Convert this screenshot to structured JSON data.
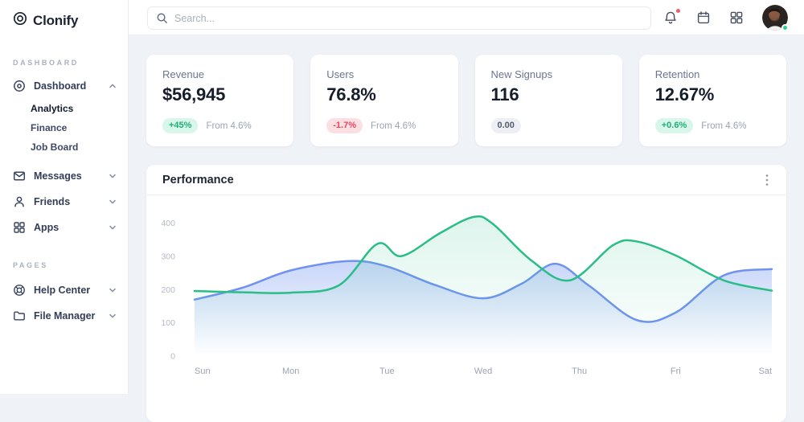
{
  "app": {
    "name": "Clonify"
  },
  "theme": {
    "green": "#2abd87",
    "blue": "#7093f0",
    "red": "#e8475c",
    "dark": "#161d2b",
    "muted": "#9aa3b4"
  },
  "topbar": {
    "search_placeholder": "Search...",
    "icons": [
      {
        "name": "bell-icon",
        "has_badge": true
      },
      {
        "name": "calendar-icon",
        "has_badge": false
      },
      {
        "name": "apps-grid-icon",
        "has_badge": false
      }
    ],
    "avatar": {
      "status": "online"
    }
  },
  "sidebar": {
    "section1_label": "DASHBOARD",
    "section2_label": "PAGES",
    "dashboard": {
      "label": "Dashboard",
      "expanded": true,
      "children": [
        {
          "label": "Analytics",
          "active": true
        },
        {
          "label": "Finance",
          "active": false
        },
        {
          "label": "Job Board",
          "active": false
        }
      ]
    },
    "items": [
      {
        "label": "Messages",
        "icon": "envelope-icon"
      },
      {
        "label": "Friends",
        "icon": "person-icon"
      },
      {
        "label": "Apps",
        "icon": "grid-icon"
      }
    ],
    "pages_items": [
      {
        "label": "Help Center",
        "icon": "life-buoy-icon"
      },
      {
        "label": "File Manager",
        "icon": "folder-icon"
      }
    ]
  },
  "stats": [
    {
      "title": "Revenue",
      "value": "$56,945",
      "badge": "+45%",
      "badge_type": "up",
      "note": "From 4.6%"
    },
    {
      "title": "Users",
      "value": "76.8%",
      "badge": "-1.7%",
      "badge_type": "down",
      "note": "From 4.6%"
    },
    {
      "title": "New Signups",
      "value": "116",
      "badge": "0.00",
      "badge_type": "neutral",
      "note": ""
    },
    {
      "title": "Retention",
      "value": "12.67%",
      "badge": "+0.6%",
      "badge_type": "up",
      "note": "From 4.6%"
    }
  ],
  "performance": {
    "title": "Performance"
  },
  "chart_data": {
    "type": "area",
    "title": "Performance",
    "x_labels": [
      "Sun",
      "Mon",
      "Tue",
      "Wed",
      "Thu",
      "Fri",
      "Sat"
    ],
    "y_ticks": [
      0,
      100,
      200,
      300,
      400
    ],
    "ylim": [
      0,
      440
    ],
    "grid": false,
    "legend": "none",
    "x_unit": "day_index_0_to_6",
    "series": [
      {
        "name": "series-blue",
        "color": "#7093f0",
        "fill_top_opacity": 0.38,
        "points": [
          [
            0,
            170
          ],
          [
            0.5,
            206
          ],
          [
            1,
            258
          ],
          [
            1.6,
            286
          ],
          [
            2,
            270
          ],
          [
            2.5,
            214
          ],
          [
            3,
            174
          ],
          [
            3.4,
            218
          ],
          [
            3.75,
            278
          ],
          [
            4.1,
            212
          ],
          [
            4.6,
            108
          ],
          [
            5,
            131
          ],
          [
            5.5,
            243
          ],
          [
            6,
            262
          ]
        ]
      },
      {
        "name": "series-green",
        "color": "#2abd87",
        "fill_top_opacity": 0.16,
        "points": [
          [
            0,
            196
          ],
          [
            0.5,
            192
          ],
          [
            1,
            191
          ],
          [
            1.5,
            213
          ],
          [
            1.9,
            338
          ],
          [
            2.15,
            301
          ],
          [
            2.55,
            370
          ],
          [
            2.9,
            419
          ],
          [
            3.1,
            398
          ],
          [
            3.5,
            288
          ],
          [
            3.9,
            228
          ],
          [
            4.35,
            334
          ],
          [
            4.6,
            345
          ],
          [
            5,
            303
          ],
          [
            5.5,
            228
          ],
          [
            6,
            197
          ]
        ]
      }
    ]
  }
}
